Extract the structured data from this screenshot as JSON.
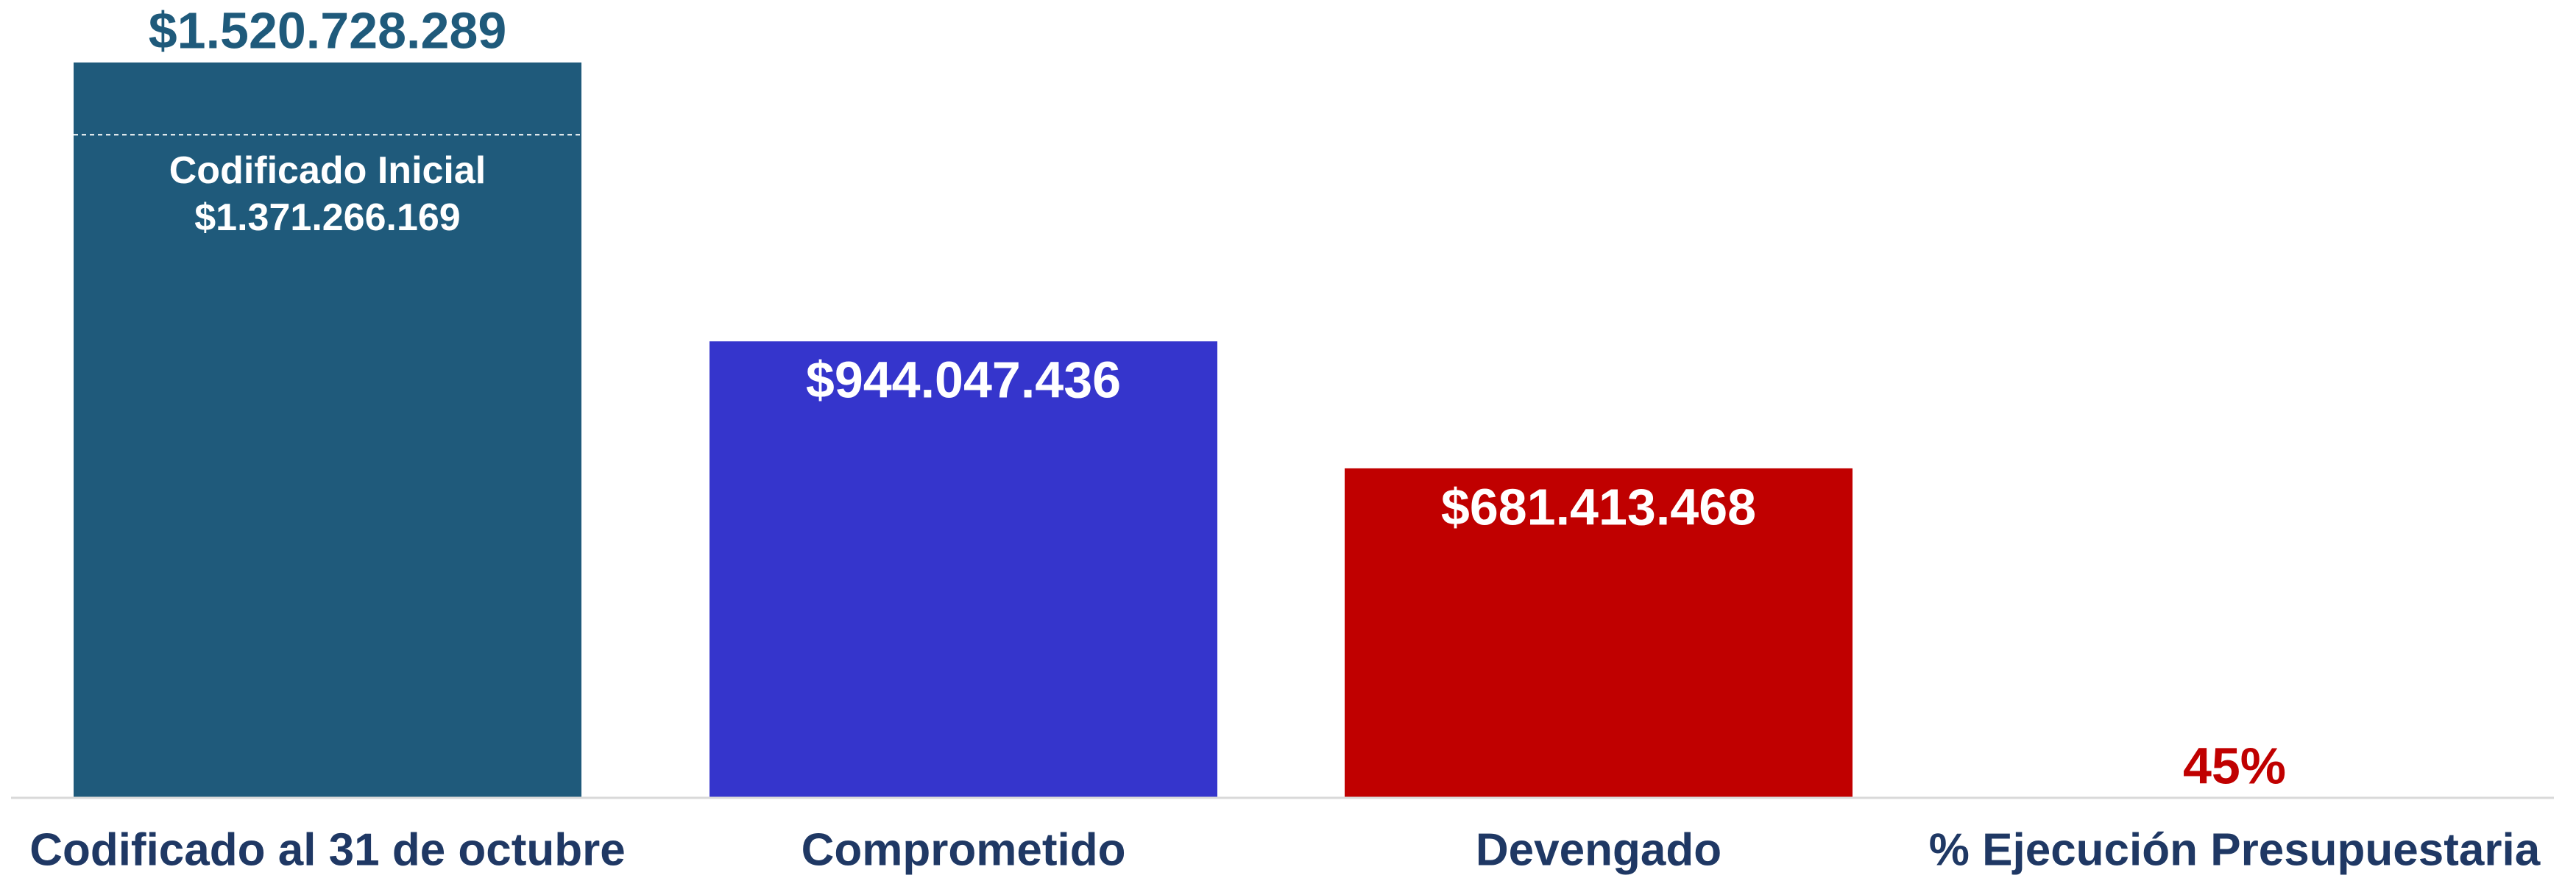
{
  "chart_data": {
    "type": "bar",
    "categories": [
      "Codificado al 31 de octubre",
      "Comprometido",
      "Devengado",
      "% Ejecución Presupuestaria"
    ],
    "values": [
      1520728289,
      944047436,
      681413468,
      45
    ],
    "value_labels": [
      "$1.520.728.289",
      "$944.047.436",
      "$681.413.468",
      "45%"
    ],
    "colors": [
      "#1f5a7b",
      "#3535cc",
      "#c00000",
      "#c00000"
    ],
    "ylim": [
      0,
      1520728289
    ],
    "annotation": {
      "label": "Codificado Inicial",
      "value": 1371266169,
      "value_label": "$1.371.266.169"
    }
  }
}
